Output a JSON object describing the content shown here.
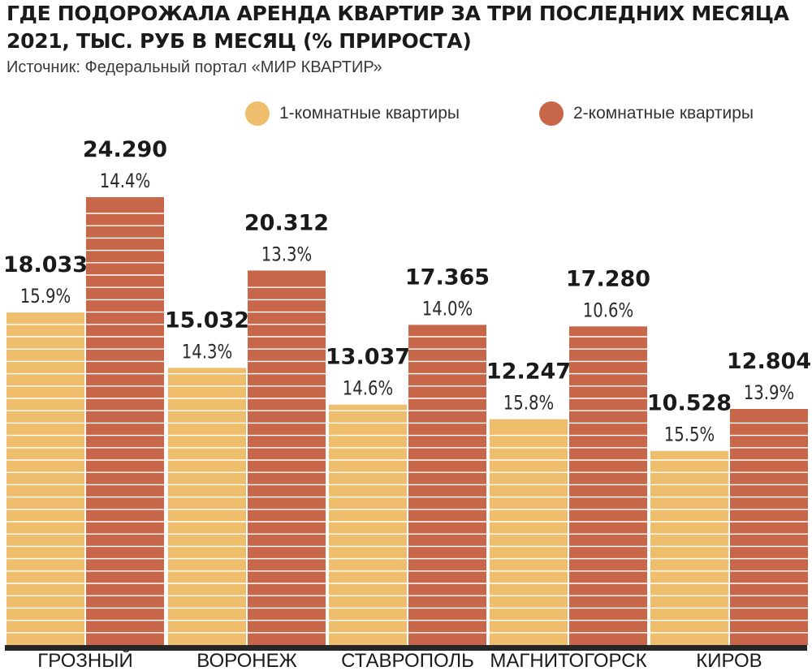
{
  "title": "ГДЕ ПОДОРОЖАЛА АРЕНДА КВАРТИР ЗА ТРИ ПОСЛЕДНИХ МЕСЯЦА 2021, ТЫС. РУБ В МЕСЯЦ (% ПРИРОСТА)",
  "source": "Источник: Федеральный портал «МИР КВАРТИР»",
  "colors": {
    "one_room": "#EEBE6C",
    "two_room": "#C8664A",
    "stripe": "#ffffff",
    "baseline": "#262626"
  },
  "chart_data": {
    "type": "bar",
    "categories": [
      "ГРОЗНЫЙ",
      "ВОРОНЕЖ",
      "СТАВРОПОЛЬ",
      "МАГНИТОГОРСК",
      "КИРОВ"
    ],
    "series": [
      {
        "name": "1-комнатные квартиры",
        "values": [
          18.033,
          15.032,
          13.037,
          12.247,
          10.528
        ],
        "value_labels": [
          "18.033",
          "15.032",
          "13.037",
          "12.247",
          "10.528"
        ],
        "growth_labels": [
          "15.9%",
          "14.3%",
          "14.6%",
          "15.8%",
          "15.5%"
        ]
      },
      {
        "name": "2-комнатные квартиры",
        "values": [
          24.29,
          20.312,
          17.365,
          17.28,
          12.804
        ],
        "value_labels": [
          "24.290",
          "20.312",
          "17.365",
          "17.280",
          "12.804"
        ],
        "growth_labels": [
          "14.4%",
          "13.3%",
          "14.0%",
          "10.6%",
          "13.9%"
        ]
      }
    ],
    "ylim": [
      0,
      24.29
    ],
    "grid": false,
    "legend_position": "top-right"
  }
}
